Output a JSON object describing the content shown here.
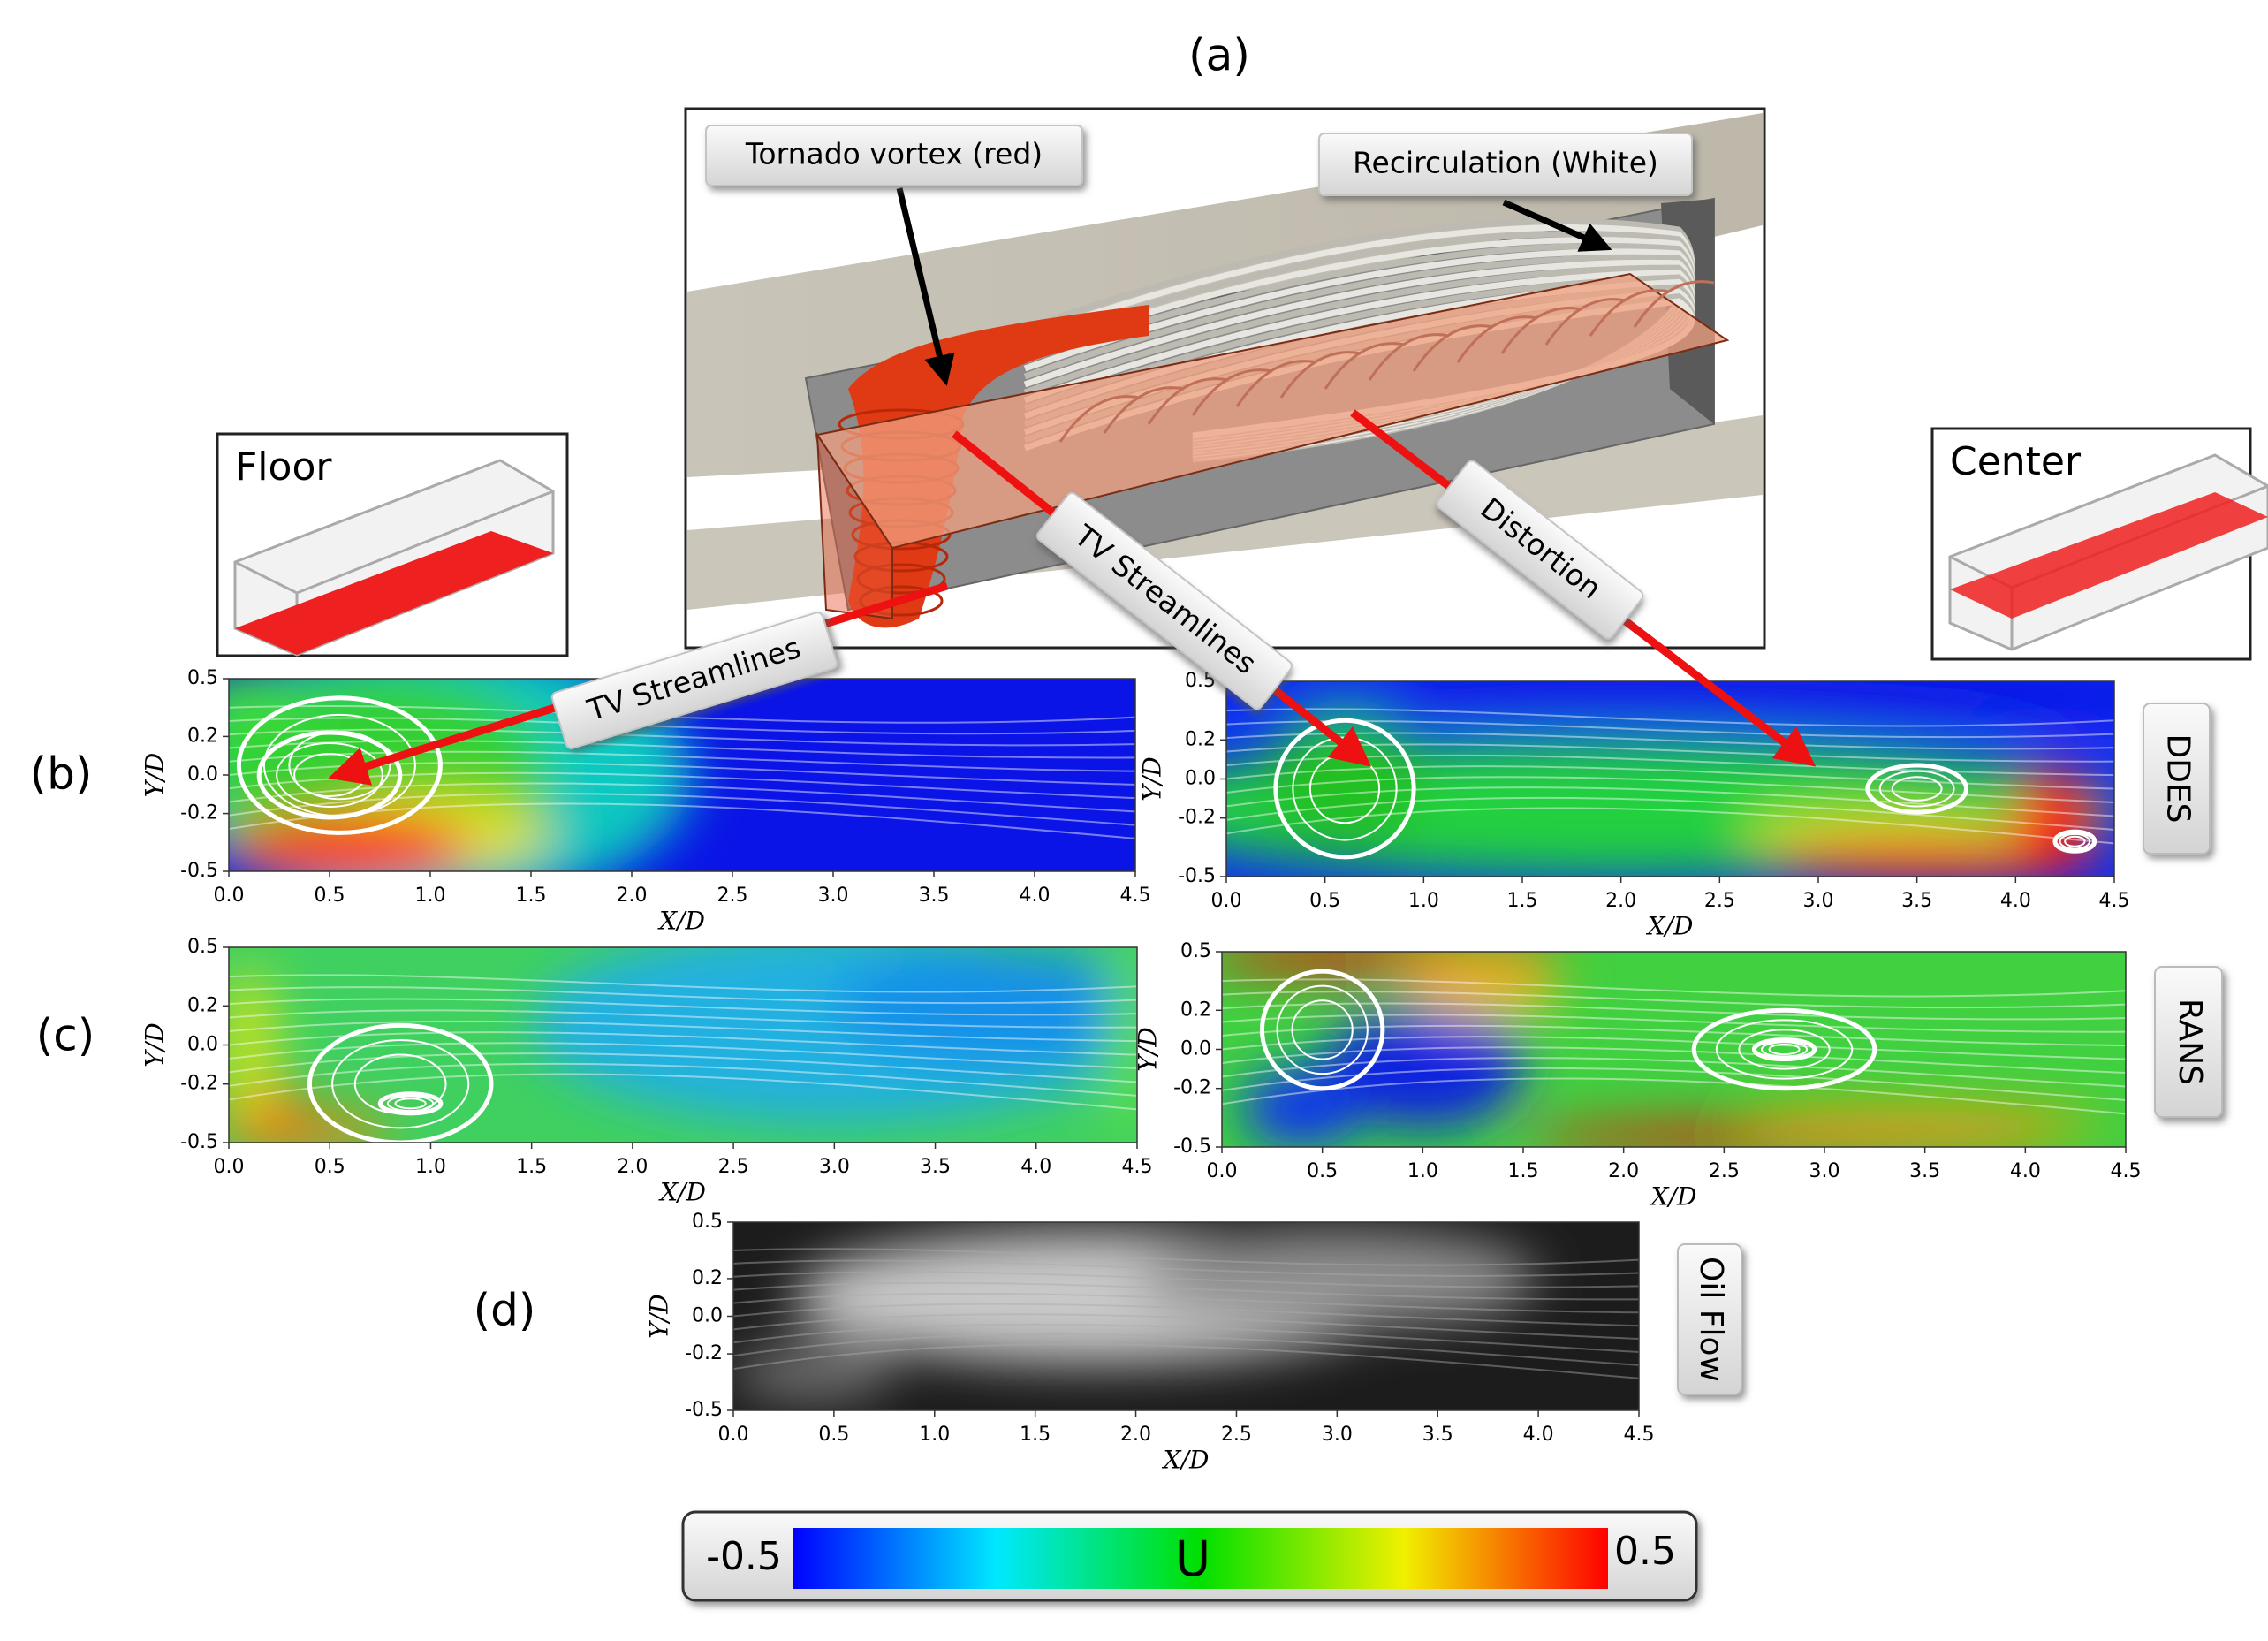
{
  "panel_a": {
    "label": "(a)",
    "callouts": [
      "Tornado vortex (red)",
      "Recirculation (White)",
      "TV Streamlines",
      "TV Streamlines",
      "Distortion"
    ]
  },
  "insets": {
    "floor": "Floor",
    "center": "Center"
  },
  "panels": [
    {
      "label": "(b)",
      "tag": "DDES"
    },
    {
      "label": "(c)",
      "tag": "RANS"
    },
    {
      "label": "(d)",
      "tag": "Oil Flow"
    }
  ],
  "axes": {
    "x_label": "X/D",
    "y_label": "Y/D",
    "xticks": [
      "0.0",
      "0.5",
      "1.0",
      "1.5",
      "2.0",
      "2.5",
      "3.0",
      "3.5",
      "4.0",
      "4.5"
    ],
    "yticks": [
      "-0.5",
      "-0.2",
      "0.0",
      "0.2",
      "0.5"
    ]
  },
  "colorbar": {
    "min": "-0.5",
    "max": "0.5",
    "variable": "U"
  }
}
